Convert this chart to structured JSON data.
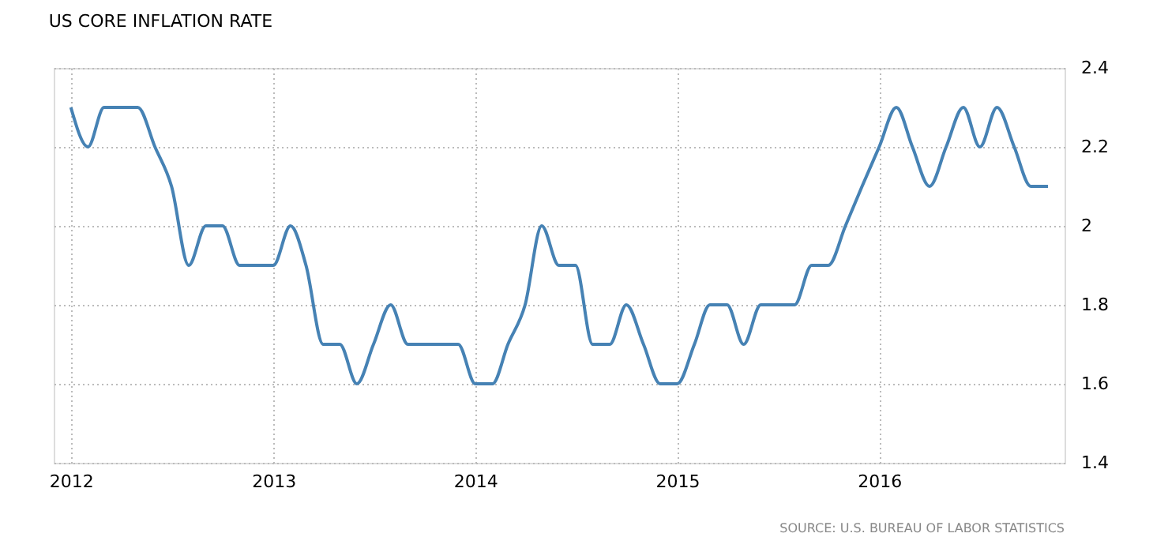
{
  "chart_data": {
    "type": "line",
    "title": "US CORE INFLATION RATE",
    "x": [
      "2012-01",
      "2012-02",
      "2012-03",
      "2012-04",
      "2012-05",
      "2012-06",
      "2012-07",
      "2012-08",
      "2012-09",
      "2012-10",
      "2012-11",
      "2012-12",
      "2013-01",
      "2013-02",
      "2013-03",
      "2013-04",
      "2013-05",
      "2013-06",
      "2013-07",
      "2013-08",
      "2013-09",
      "2013-10",
      "2013-11",
      "2013-12",
      "2014-01",
      "2014-02",
      "2014-03",
      "2014-04",
      "2014-05",
      "2014-06",
      "2014-07",
      "2014-08",
      "2014-09",
      "2014-10",
      "2014-11",
      "2014-12",
      "2015-01",
      "2015-02",
      "2015-03",
      "2015-04",
      "2015-05",
      "2015-06",
      "2015-07",
      "2015-08",
      "2015-09",
      "2015-10",
      "2015-11",
      "2015-12",
      "2016-01",
      "2016-02",
      "2016-03",
      "2016-04",
      "2016-05",
      "2016-06",
      "2016-07",
      "2016-08",
      "2016-09",
      "2016-10",
      "2016-11"
    ],
    "series": [
      {
        "color": "#4682b4",
        "values": [
          2.3,
          2.2,
          2.3,
          2.3,
          2.3,
          2.2,
          2.1,
          1.9,
          2.0,
          2.0,
          1.9,
          1.9,
          1.9,
          2.0,
          1.9,
          1.7,
          1.7,
          1.6,
          1.7,
          1.8,
          1.7,
          1.7,
          1.7,
          1.7,
          1.6,
          1.6,
          1.7,
          1.8,
          2.0,
          1.9,
          1.9,
          1.7,
          1.7,
          1.8,
          1.7,
          1.6,
          1.6,
          1.7,
          1.8,
          1.8,
          1.7,
          1.8,
          1.8,
          1.8,
          1.9,
          1.9,
          2.0,
          2.1,
          2.2,
          2.3,
          2.2,
          2.1,
          2.2,
          2.3,
          2.2,
          2.3,
          2.2,
          2.1,
          2.1
        ]
      }
    ],
    "xlim": [
      "2011-12",
      "2016-12"
    ],
    "xticks": [
      "2012",
      "2013",
      "2014",
      "2015",
      "2016"
    ],
    "ylim": [
      1.4,
      2.4
    ],
    "yticks": [
      1.4,
      1.6,
      1.8,
      2,
      2.2,
      2.4
    ],
    "grid": true,
    "marker": "none",
    "line_style": "solid",
    "annotations": [
      "SOURCE: U.S. BUREAU OF LABOR STATISTICS"
    ]
  }
}
